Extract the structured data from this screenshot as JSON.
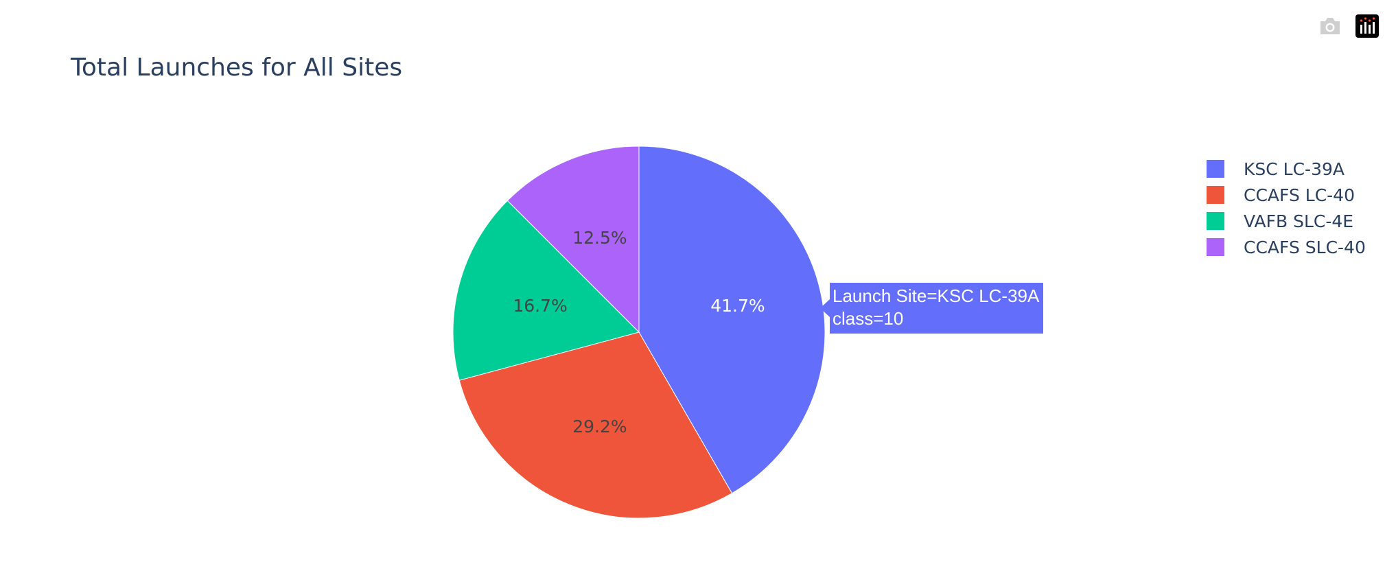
{
  "modebar": {
    "items": [
      {
        "icon": "camera-icon",
        "color": "#c8c8c8"
      },
      {
        "icon": "plotly-logo-icon",
        "color": "#000000"
      }
    ]
  },
  "chart_data": {
    "type": "pie",
    "title": "Total Launches for All Sites",
    "slices": [
      {
        "label": "KSC LC-39A",
        "value": 10,
        "percent_label": "41.7%",
        "color": "#636efa"
      },
      {
        "label": "CCAFS LC-40",
        "value": 7,
        "percent_label": "29.2%",
        "color": "#ef553b"
      },
      {
        "label": "VAFB SLC-4E",
        "value": 4,
        "percent_label": "16.7%",
        "color": "#00cc96"
      },
      {
        "label": "CCAFS SLC-40",
        "value": 3,
        "percent_label": "12.5%",
        "color": "#ab63fa"
      }
    ],
    "legend": {
      "position": "top-right"
    },
    "hover": {
      "line1": "Launch Site=KSC LC-39A",
      "line2": "class=10"
    }
  }
}
